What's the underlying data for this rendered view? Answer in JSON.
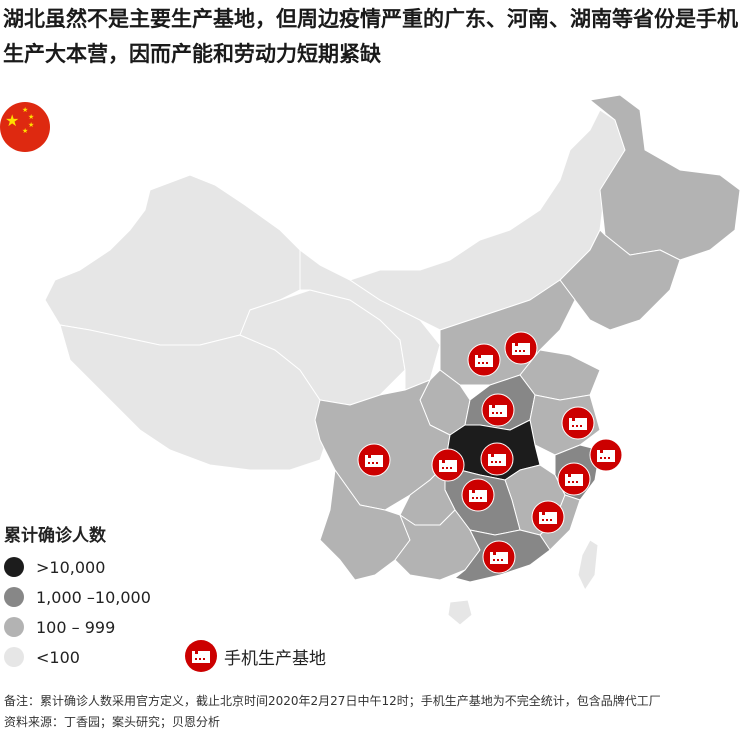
{
  "title": "湖北虽然不是主要生产基地，但周边疫情严重的广东、河南、湖南等省份是手机生产大本营，因而产能和劳动力短期紧缺",
  "flag_icon": "china-flag",
  "legend": {
    "title": "累计确诊人数",
    "items": [
      {
        "label": ">10,000",
        "color": "#1c1c1c"
      },
      {
        "label": "1,000 –10,000",
        "color": "#878787"
      },
      {
        "label": "100 – 999",
        "color": "#b3b3b3"
      },
      {
        "label": "<100",
        "color": "#e6e6e6"
      }
    ],
    "factory_label": "手机生产基地",
    "factory_color": "#cc0000"
  },
  "notes": {
    "remark": "备注：累计确诊人数采用官方定义，截止北京时间2020年2月27日中午12时；手机生产基地为不完全统计，包含品牌代工厂",
    "source": "资料来源：丁香园；案头研究；贝恩分析"
  }
}
